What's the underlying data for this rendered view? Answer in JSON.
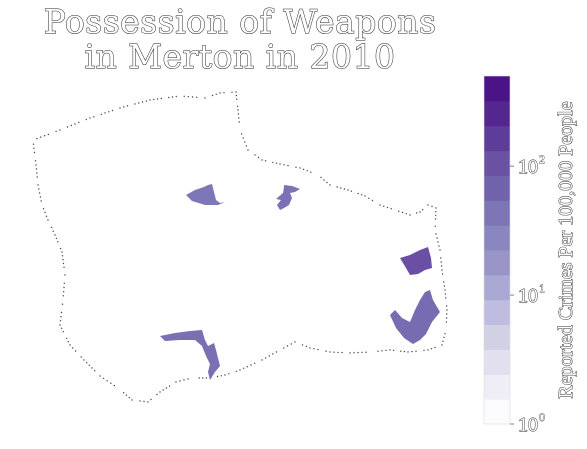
{
  "title": {
    "line1": "Possession of Weapons",
    "line2": "in Merton in 2010"
  },
  "colorbar": {
    "label": "Reported Crimes Per 100,000 People",
    "scale": "log",
    "min": 1,
    "max": 500,
    "colors": [
      "#fcfbfd",
      "#efedf5",
      "#e2e0ef",
      "#d1d1e6",
      "#bebde0",
      "#aaa9d3",
      "#9894c6",
      "#8a86bf",
      "#7d75b5",
      "#7262ac",
      "#6a51a3",
      "#5e3c99",
      "#53278f",
      "#4a1486"
    ],
    "ticks": [
      {
        "value": 1,
        "base": "10",
        "exp": "0"
      },
      {
        "value": 10,
        "base": "10",
        "exp": "1"
      },
      {
        "value": 100,
        "base": "10",
        "exp": "2"
      }
    ]
  },
  "map": {
    "boundary_color": "#444444",
    "areas": [
      {
        "name": "area-west-north",
        "value": 40,
        "color": "#7d77b8"
      },
      {
        "name": "area-central-north",
        "value": 45,
        "color": "#7a72b5"
      },
      {
        "name": "area-east-upper",
        "value": 150,
        "color": "#6a4fa4"
      },
      {
        "name": "area-east-lower",
        "value": 55,
        "color": "#776cb2"
      },
      {
        "name": "area-south-west",
        "value": 50,
        "color": "#7970b4"
      }
    ]
  }
}
